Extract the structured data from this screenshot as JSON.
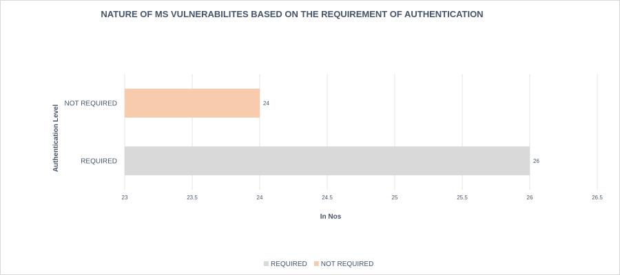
{
  "chart_data": {
    "type": "bar",
    "orientation": "horizontal",
    "title": "NATURE OF MS VULNERABILITES BASED ON THE REQUIREMENT OF AUTHENTICATION",
    "xlabel": "In Nos",
    "ylabel": "Authentication Level",
    "xlim": [
      23,
      26.5
    ],
    "x_ticks": [
      "23",
      "23.5",
      "24",
      "24.5",
      "25",
      "25.5",
      "26",
      "26.5"
    ],
    "x_tick_values": [
      23,
      23.5,
      24,
      24.5,
      25,
      25.5,
      26,
      26.5
    ],
    "grid": true,
    "legend_position": "bottom",
    "categories": [
      "NOT REQUIRED",
      "REQUIRED"
    ],
    "values": [
      24,
      26
    ],
    "data_labels": [
      "24",
      "26"
    ],
    "colors": [
      "#f8cbad",
      "#d9d9d9"
    ],
    "legend": [
      {
        "label": "REQUIRED",
        "color": "#d9d9d9"
      },
      {
        "label": "NOT REQUIRED",
        "color": "#f8cbad"
      }
    ]
  }
}
